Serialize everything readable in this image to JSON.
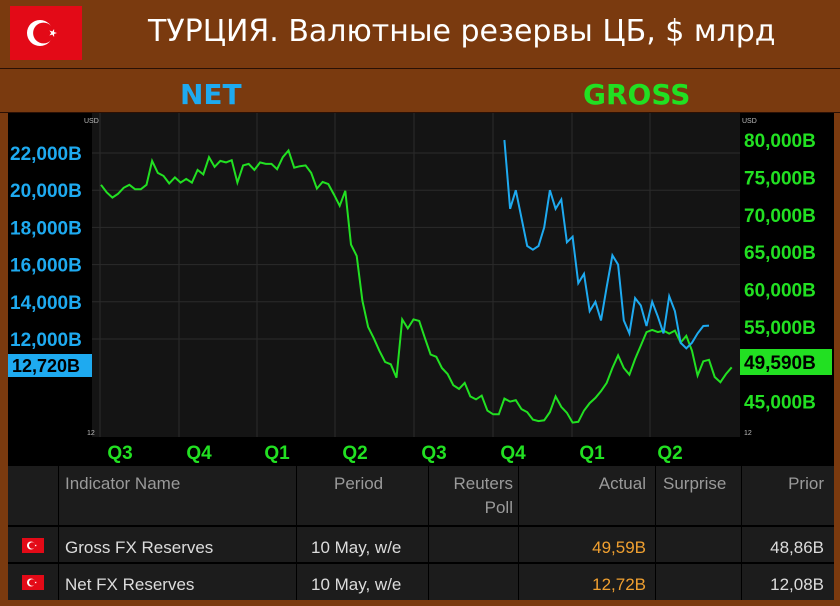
{
  "header": {
    "title": "ТУРЦИЯ. Валютные резервы ЦБ, $ млрд",
    "net_label": "NET",
    "gross_label": "GROSS"
  },
  "colors": {
    "net": "#1eaaf0",
    "gross": "#22e022",
    "actual": "#f0a030",
    "flag": "#e30a17"
  },
  "chart_data": {
    "type": "line",
    "x_ticks": [
      "Q3",
      "Q4",
      "Q1",
      "Q2",
      "Q3",
      "Q4",
      "Q1",
      "Q2"
    ],
    "unit_left": "USD",
    "unit_right": "USD",
    "left_axis": {
      "ticks": [
        "22,000B",
        "20,000B",
        "18,000B",
        "16,000B",
        "14,000B",
        "12,000B"
      ],
      "values": [
        22000,
        20000,
        18000,
        16000,
        14000,
        12000
      ],
      "current": "12,720B",
      "bottom_label": "12"
    },
    "right_axis": {
      "ticks": [
        "80,000B",
        "75,000B",
        "70,000B",
        "65,000B",
        "60,000B",
        "55,000B",
        "45,000B"
      ],
      "values": [
        80000,
        75000,
        70000,
        65000,
        60000,
        55000,
        45000
      ],
      "current": "49,590B",
      "bottom_label": "12"
    },
    "series": [
      {
        "name": "NET",
        "axis": "left",
        "values": [
          null,
          null,
          null,
          null,
          null,
          null,
          null,
          null,
          null,
          null,
          null,
          null,
          null,
          null,
          null,
          null,
          null,
          null,
          null,
          null,
          null,
          null,
          null,
          null,
          null,
          null,
          null,
          null,
          null,
          null,
          null,
          null,
          null,
          null,
          null,
          null,
          null,
          null,
          null,
          null,
          null,
          null,
          null,
          null,
          null,
          null,
          null,
          null,
          null,
          null,
          null,
          null,
          null,
          null,
          null,
          null,
          null,
          null,
          null,
          null,
          null,
          null,
          null,
          null,
          null,
          null,
          null,
          null,
          null,
          null,
          null,
          22700,
          19000,
          20000,
          18500,
          17000,
          16800,
          17000,
          18000,
          20000,
          19000,
          19500,
          17200,
          17500,
          15000,
          15500,
          13500,
          14000,
          13000,
          14800,
          16500,
          16000,
          13000,
          12300,
          14200,
          13800,
          12700,
          14000,
          13200,
          12300,
          14300,
          13500,
          11800,
          11500,
          11800,
          12300,
          12700,
          12720
        ]
      },
      {
        "name": "GROSS",
        "axis": "right",
        "values": [
          74000,
          73000,
          72300,
          72800,
          73600,
          74000,
          73400,
          73400,
          74000,
          77200,
          75600,
          75200,
          74200,
          75000,
          74300,
          74800,
          74300,
          76000,
          75400,
          77700,
          76400,
          77200,
          77000,
          77300,
          74300,
          76600,
          76800,
          76000,
          77000,
          76800,
          76800,
          76100,
          77700,
          78600,
          76300,
          76500,
          76600,
          75600,
          73500,
          74400,
          74100,
          72700,
          71200,
          73200,
          66000,
          64500,
          58500,
          55000,
          53500,
          51800,
          50300,
          50000,
          48200,
          56000,
          54800,
          56000,
          55800,
          53500,
          51300,
          51000,
          49500,
          48700,
          47200,
          46700,
          47500,
          45700,
          45300,
          45800,
          43800,
          43300,
          43300,
          45400,
          45000,
          45200,
          44000,
          43600,
          42600,
          42400,
          42500,
          43600,
          45700,
          44300,
          43500,
          42200,
          42300,
          43800,
          44800,
          45500,
          46400,
          47500,
          49500,
          51200,
          49500,
          48600,
          50700,
          52500,
          54300,
          54600,
          54300,
          54500,
          54100,
          54500,
          52900,
          53800,
          51800,
          48500,
          50400,
          50600,
          48300,
          47600,
          48700,
          49590
        ]
      }
    ]
  },
  "table": {
    "headers": {
      "indicator": "Indicator Name",
      "period": "Period",
      "poll_line1": "Reuters",
      "poll_line2": "Poll",
      "actual": "Actual",
      "surprise": "Surprise",
      "prior": "Prior"
    },
    "rows": [
      {
        "name": "Gross FX Reserves",
        "period": "10 May, w/e",
        "poll": "",
        "actual": "49,59B",
        "surprise": "",
        "prior": "48,86B"
      },
      {
        "name": "Net FX Reserves",
        "period": "10 May, w/e",
        "poll": "",
        "actual": "12,72B",
        "surprise": "",
        "prior": "12,08B"
      }
    ]
  }
}
